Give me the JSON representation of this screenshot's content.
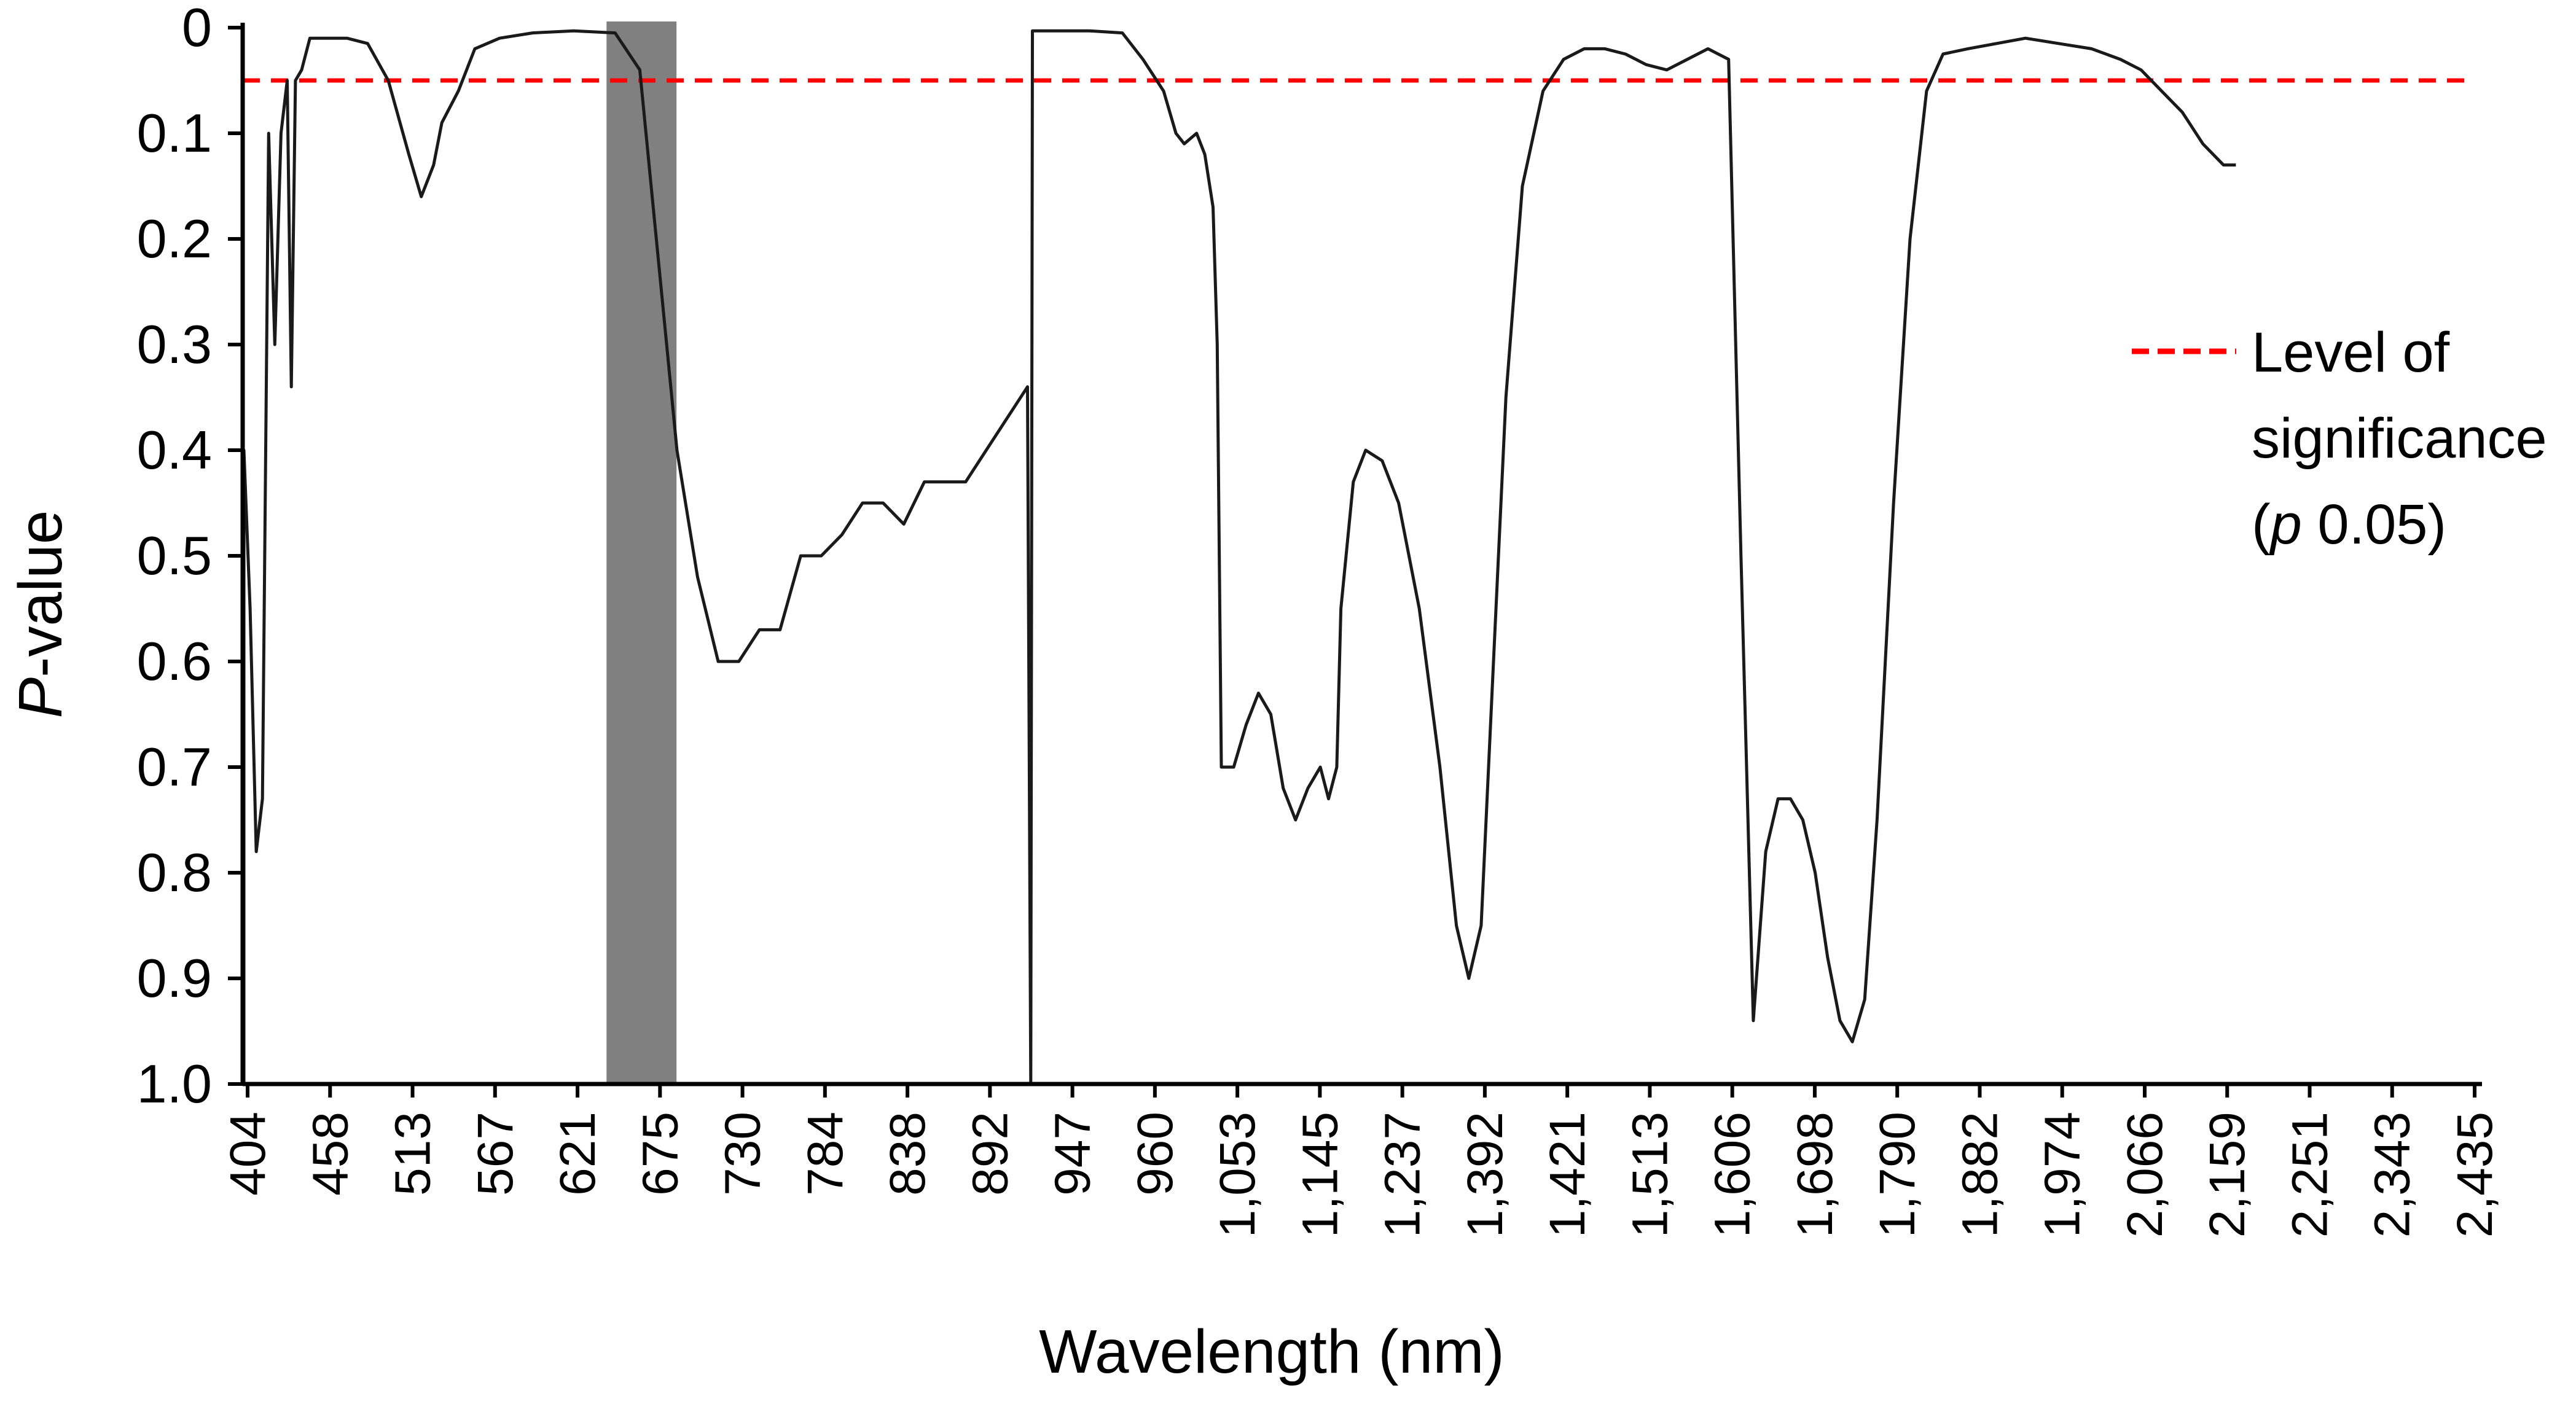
{
  "chart_data": {
    "type": "line",
    "title": "",
    "xlabel": "Wavelength (nm)",
    "ylabel_italic": "P",
    "ylabel_rest": "-value",
    "y_inverted": true,
    "ylim": [
      0,
      1.0
    ],
    "y_ticks": [
      "0",
      "0.1",
      "0.2",
      "0.3",
      "0.4",
      "0.5",
      "0.6",
      "0.7",
      "0.8",
      "0.9",
      "1.0"
    ],
    "x_ticks": [
      "404",
      "458",
      "513",
      "567",
      "621",
      "675",
      "730",
      "784",
      "838",
      "892",
      "947",
      "960",
      "1,053",
      "1,145",
      "1,237",
      "1,392",
      "1,421",
      "1,513",
      "1,606",
      "1,698",
      "1,790",
      "1,882",
      "1,974",
      "2,066",
      "2,159",
      "2,251",
      "2,343",
      "2,435"
    ],
    "significance_level": 0.05,
    "shaded_region": {
      "from": 640,
      "to": 686,
      "color": "#808080"
    },
    "legend": {
      "line1": "Level of",
      "line2": "significance",
      "line3_open": "(",
      "line3_italic": "p",
      "line3_rest": " 0.05)",
      "color": "#ff0000"
    },
    "series": [
      {
        "name": "P-value",
        "color": "#1a1a1a",
        "points": [
          [
            0,
            1.0
          ],
          [
            0.0,
            0.4
          ],
          [
            0.15,
            0.55
          ],
          [
            0.3,
            0.78
          ],
          [
            0.45,
            0.73
          ],
          [
            0.6,
            0.1
          ],
          [
            0.75,
            0.3
          ],
          [
            0.9,
            0.1
          ],
          [
            1.05,
            0.05
          ],
          [
            1.15,
            0.34
          ],
          [
            1.25,
            0.05
          ],
          [
            1.4,
            0.04
          ],
          [
            1.6,
            0.01
          ],
          [
            2.0,
            0.01
          ],
          [
            2.5,
            0.01
          ],
          [
            3.0,
            0.015
          ],
          [
            3.5,
            0.05
          ],
          [
            4.0,
            0.12
          ],
          [
            4.3,
            0.16
          ],
          [
            4.6,
            0.13
          ],
          [
            4.8,
            0.09
          ],
          [
            5.2,
            0.06
          ],
          [
            5.6,
            0.02
          ],
          [
            6.2,
            0.01
          ],
          [
            7.0,
            0.005
          ],
          [
            8.0,
            0.003
          ],
          [
            9.0,
            0.005
          ],
          [
            9.6,
            0.04
          ],
          [
            10.0,
            0.2
          ],
          [
            10.5,
            0.4
          ],
          [
            11.0,
            0.52
          ],
          [
            11.5,
            0.6
          ],
          [
            12.0,
            0.6
          ],
          [
            12.5,
            0.57
          ],
          [
            13.0,
            0.57
          ],
          [
            13.5,
            0.5
          ],
          [
            14.0,
            0.5
          ],
          [
            14.5,
            0.48
          ],
          [
            15.0,
            0.45
          ],
          [
            15.5,
            0.45
          ],
          [
            16.0,
            0.47
          ],
          [
            16.5,
            0.43
          ],
          [
            17.0,
            0.43
          ],
          [
            17.5,
            0.43
          ],
          [
            18.0,
            0.4
          ],
          [
            18.5,
            0.37
          ],
          [
            19.0,
            0.34
          ],
          [
            19.08,
            1.0
          ],
          [
            19.12,
            0.003
          ],
          [
            19.5,
            0.003
          ],
          [
            20.5,
            0.003
          ],
          [
            21.3,
            0.005
          ],
          [
            21.8,
            0.03
          ],
          [
            22.3,
            0.06
          ],
          [
            22.6,
            0.1
          ],
          [
            22.8,
            0.11
          ],
          [
            23.1,
            0.1
          ],
          [
            23.3,
            0.12
          ],
          [
            23.5,
            0.17
          ],
          [
            23.6,
            0.3
          ],
          [
            23.7,
            0.7
          ],
          [
            24.0,
            0.7
          ],
          [
            24.3,
            0.66
          ],
          [
            24.6,
            0.63
          ],
          [
            24.9,
            0.65
          ],
          [
            25.2,
            0.72
          ],
          [
            25.5,
            0.75
          ],
          [
            25.8,
            0.72
          ],
          [
            26.1,
            0.7
          ],
          [
            26.3,
            0.73
          ],
          [
            26.5,
            0.7
          ],
          [
            26.6,
            0.55
          ],
          [
            26.9,
            0.43
          ],
          [
            27.2,
            0.4
          ],
          [
            27.6,
            0.41
          ],
          [
            28.0,
            0.45
          ],
          [
            28.5,
            0.55
          ],
          [
            29.0,
            0.7
          ],
          [
            29.4,
            0.85
          ],
          [
            29.7,
            0.9
          ],
          [
            30.0,
            0.85
          ],
          [
            30.3,
            0.6
          ],
          [
            30.6,
            0.35
          ],
          [
            31.0,
            0.15
          ],
          [
            31.5,
            0.06
          ],
          [
            32.0,
            0.03
          ],
          [
            32.5,
            0.02
          ],
          [
            33.0,
            0.02
          ],
          [
            33.5,
            0.025
          ],
          [
            34.0,
            0.035
          ],
          [
            34.5,
            0.04
          ],
          [
            35.0,
            0.03
          ],
          [
            35.5,
            0.02
          ],
          [
            36.0,
            0.03
          ],
          [
            36.3,
            0.5
          ],
          [
            36.6,
            0.94
          ],
          [
            36.9,
            0.78
          ],
          [
            37.2,
            0.73
          ],
          [
            37.5,
            0.73
          ],
          [
            37.8,
            0.75
          ],
          [
            38.1,
            0.8
          ],
          [
            38.4,
            0.88
          ],
          [
            38.7,
            0.94
          ],
          [
            39.0,
            0.96
          ],
          [
            39.3,
            0.92
          ],
          [
            39.6,
            0.75
          ],
          [
            40.0,
            0.45
          ],
          [
            40.4,
            0.2
          ],
          [
            40.8,
            0.06
          ],
          [
            41.2,
            0.025
          ],
          [
            41.8,
            0.02
          ],
          [
            42.5,
            0.015
          ],
          [
            43.2,
            0.01
          ],
          [
            44.0,
            0.015
          ],
          [
            44.8,
            0.02
          ],
          [
            45.5,
            0.03
          ],
          [
            46.0,
            0.04
          ],
          [
            46.5,
            0.06
          ],
          [
            47.0,
            0.08
          ],
          [
            47.5,
            0.11
          ],
          [
            48.0,
            0.13
          ],
          [
            48.3,
            0.13
          ]
        ]
      }
    ]
  }
}
